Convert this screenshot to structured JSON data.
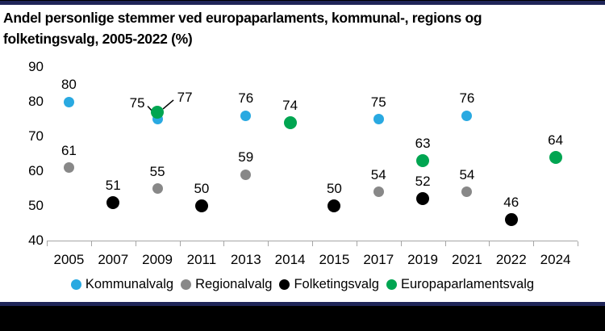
{
  "header": {
    "title_line1": "Andel personlige stemmer ved europaparlaments, kommunal-, regions og",
    "title_line2": "folketingsvalg, 2005-2022 (%)"
  },
  "colors": {
    "accent_bar": "#1f2558",
    "footer_block": "#000000",
    "axis": "#a6a6a6"
  },
  "chart_data": {
    "type": "scatter",
    "title": "Andel personlige stemmer ved europaparlaments, kommunal-, regions og folketingsvalg, 2005-2022 (%)",
    "categories": [
      "2005",
      "2007",
      "2009",
      "2011",
      "2013",
      "2014",
      "2015",
      "2017",
      "2019",
      "2021",
      "2022",
      "2024"
    ],
    "yticks": [
      90,
      80,
      70,
      60,
      50,
      40
    ],
    "ylim": [
      40,
      90
    ],
    "grid": false,
    "legend_position": "bottom",
    "series": [
      {
        "name": "Kommunalvalg",
        "color": "#29a9e1",
        "dot_size": 13,
        "points": [
          {
            "x": "2005",
            "y": 80
          },
          {
            "x": "2009",
            "y": 75,
            "callout": "left"
          },
          {
            "x": "2013",
            "y": 76
          },
          {
            "x": "2017",
            "y": 75
          },
          {
            "x": "2021",
            "y": 76
          }
        ]
      },
      {
        "name": "Regionalvalg",
        "color": "#888888",
        "dot_size": 13,
        "points": [
          {
            "x": "2005",
            "y": 61
          },
          {
            "x": "2009",
            "y": 55
          },
          {
            "x": "2013",
            "y": 59
          },
          {
            "x": "2017",
            "y": 54
          },
          {
            "x": "2021",
            "y": 54
          }
        ]
      },
      {
        "name": "Folketingsvalg",
        "color": "#000000",
        "dot_size": 16,
        "points": [
          {
            "x": "2007",
            "y": 51
          },
          {
            "x": "2011",
            "y": 50
          },
          {
            "x": "2015",
            "y": 50
          },
          {
            "x": "2019",
            "y": 52
          },
          {
            "x": "2022",
            "y": 46
          }
        ]
      },
      {
        "name": "Europaparlamentsvalg",
        "color": "#00a551",
        "dot_size": 16,
        "points": [
          {
            "x": "2009",
            "y": 77,
            "callout": "right"
          },
          {
            "x": "2014",
            "y": 74
          },
          {
            "x": "2019",
            "y": 63
          },
          {
            "x": "2024",
            "y": 64
          }
        ]
      }
    ]
  }
}
